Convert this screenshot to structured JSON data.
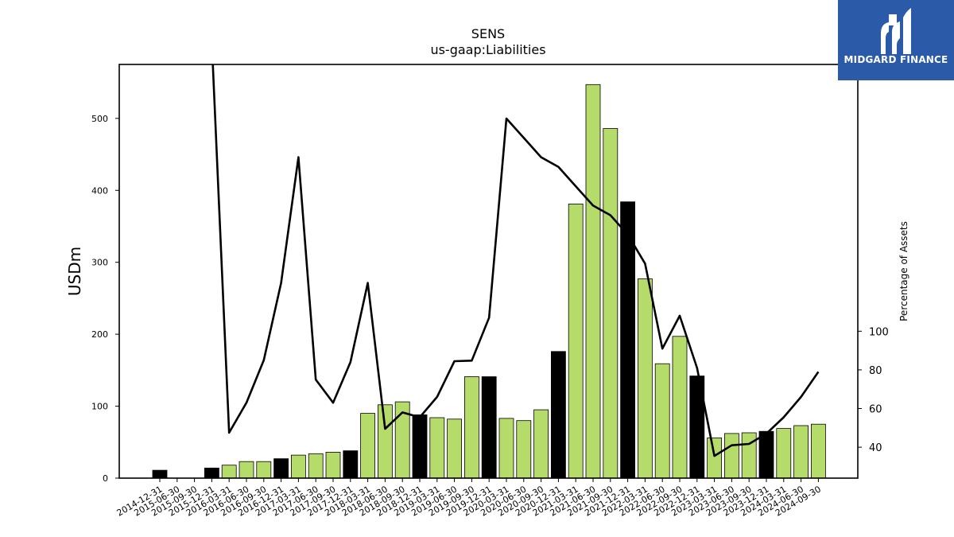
{
  "chart_data": {
    "type": "bar",
    "title": "SENS",
    "subtitle": "us-gaap:Liabilities",
    "ylabel": "USDm",
    "y2label": "Percentage of Assets",
    "ylim": [
      0,
      575
    ],
    "y2lim": [
      24,
      238
    ],
    "yticks": [
      0,
      100,
      200,
      300,
      400,
      500
    ],
    "y2ticks": [
      40,
      60,
      80,
      100
    ],
    "categories": [
      "2014-12-31",
      "2015-06-30",
      "2015-09-30",
      "2015-12-31",
      "2016-03-31",
      "2016-06-30",
      "2016-09-30",
      "2016-12-31",
      "2017-03-31",
      "2017-06-30",
      "2017-09-30",
      "2017-12-31",
      "2018-03-31",
      "2018-06-30",
      "2018-09-30",
      "2018-12-31",
      "2019-03-31",
      "2019-06-30",
      "2019-09-30",
      "2019-12-31",
      "2020-03-31",
      "2020-06-30",
      "2020-09-30",
      "2020-12-31",
      "2021-03-31",
      "2021-06-30",
      "2021-09-30",
      "2021-12-31",
      "2022-03-31",
      "2022-06-30",
      "2022-09-30",
      "2022-12-31",
      "2023-03-31",
      "2023-06-30",
      "2023-09-30",
      "2023-12-31",
      "2024-03-31",
      "2024-06-30",
      "2024-09-30"
    ],
    "series": [
      {
        "type": "bar",
        "values": [
          11,
          0,
          0,
          14,
          18,
          23,
          23,
          27,
          32,
          34,
          36,
          38,
          90,
          102,
          106,
          88,
          84,
          82,
          141,
          141,
          83,
          80,
          95,
          176,
          381,
          547,
          486,
          384,
          277,
          159,
          197,
          142,
          56,
          62,
          63,
          65,
          69,
          73,
          75
        ],
        "annual": [
          true,
          false,
          false,
          true,
          false,
          false,
          false,
          true,
          false,
          false,
          false,
          true,
          false,
          false,
          false,
          true,
          false,
          false,
          false,
          true,
          false,
          false,
          false,
          true,
          false,
          false,
          false,
          true,
          false,
          false,
          false,
          true,
          false,
          false,
          false,
          true,
          false,
          false,
          false
        ]
      },
      {
        "type": "line",
        "axis": "right",
        "values": [
          null,
          null,
          null,
          250,
          47.5,
          63,
          85,
          125,
          190,
          75,
          63,
          84,
          125,
          49.5,
          58,
          55.5,
          66,
          84.5,
          84.8,
          107,
          210,
          200,
          190,
          185,
          175,
          165,
          160,
          150,
          135,
          91,
          108,
          81,
          35.5,
          41,
          41.7,
          47,
          55.5,
          66,
          79
        ]
      }
    ],
    "colors": {
      "quarter_bar": "#b5dc6b",
      "annual_bar": "#000000",
      "bar_edge": "#000000",
      "line": "#000000"
    }
  },
  "logo": {
    "text": "MIDGARD FINANCE",
    "background": "#2b5aa8"
  }
}
